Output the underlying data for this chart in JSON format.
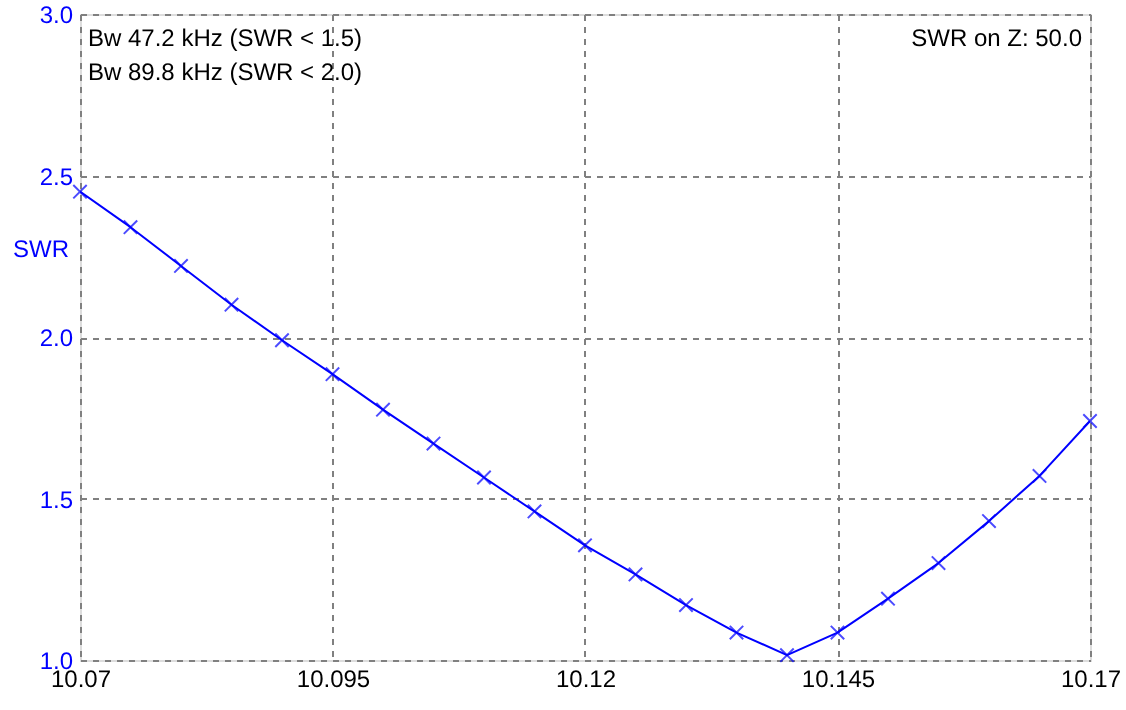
{
  "chart_data": {
    "type": "line",
    "ylabel": "SWR",
    "annotations": [
      "Bw 47.2 kHz (SWR < 1.5)",
      "Bw 89.8 kHz (SWR < 2.0)",
      "SWR on Z: 50.0"
    ],
    "x": [
      10.07,
      10.075,
      10.08,
      10.085,
      10.09,
      10.095,
      10.1,
      10.105,
      10.11,
      10.115,
      10.12,
      10.125,
      10.13,
      10.135,
      10.14,
      10.145,
      10.15,
      10.155,
      10.16,
      10.165,
      10.17
    ],
    "series": [
      {
        "color": "#0000ff",
        "values": [
          2.45,
          2.34,
          2.22,
          2.1,
          1.99,
          1.885,
          1.775,
          1.67,
          1.565,
          1.46,
          1.355,
          1.265,
          1.17,
          1.085,
          1.015,
          1.085,
          1.19,
          1.3,
          1.43,
          1.57,
          1.74
        ]
      }
    ],
    "xlim": [
      10.07,
      10.17
    ],
    "xticks": [
      10.07,
      10.095,
      10.12,
      10.145,
      10.17
    ],
    "ylim": [
      1.0,
      3.0
    ],
    "yticks": [
      {
        "value": 1.0,
        "label": "1.0"
      },
      {
        "value": 1.5,
        "label": "1.5"
      },
      {
        "value": 2.0,
        "label": "2.0"
      },
      {
        "value": 2.5,
        "label": "2.5"
      },
      {
        "value": 3.0,
        "label": "3.0"
      }
    ],
    "grid": true,
    "marker": "cross",
    "line_style": "solid"
  }
}
